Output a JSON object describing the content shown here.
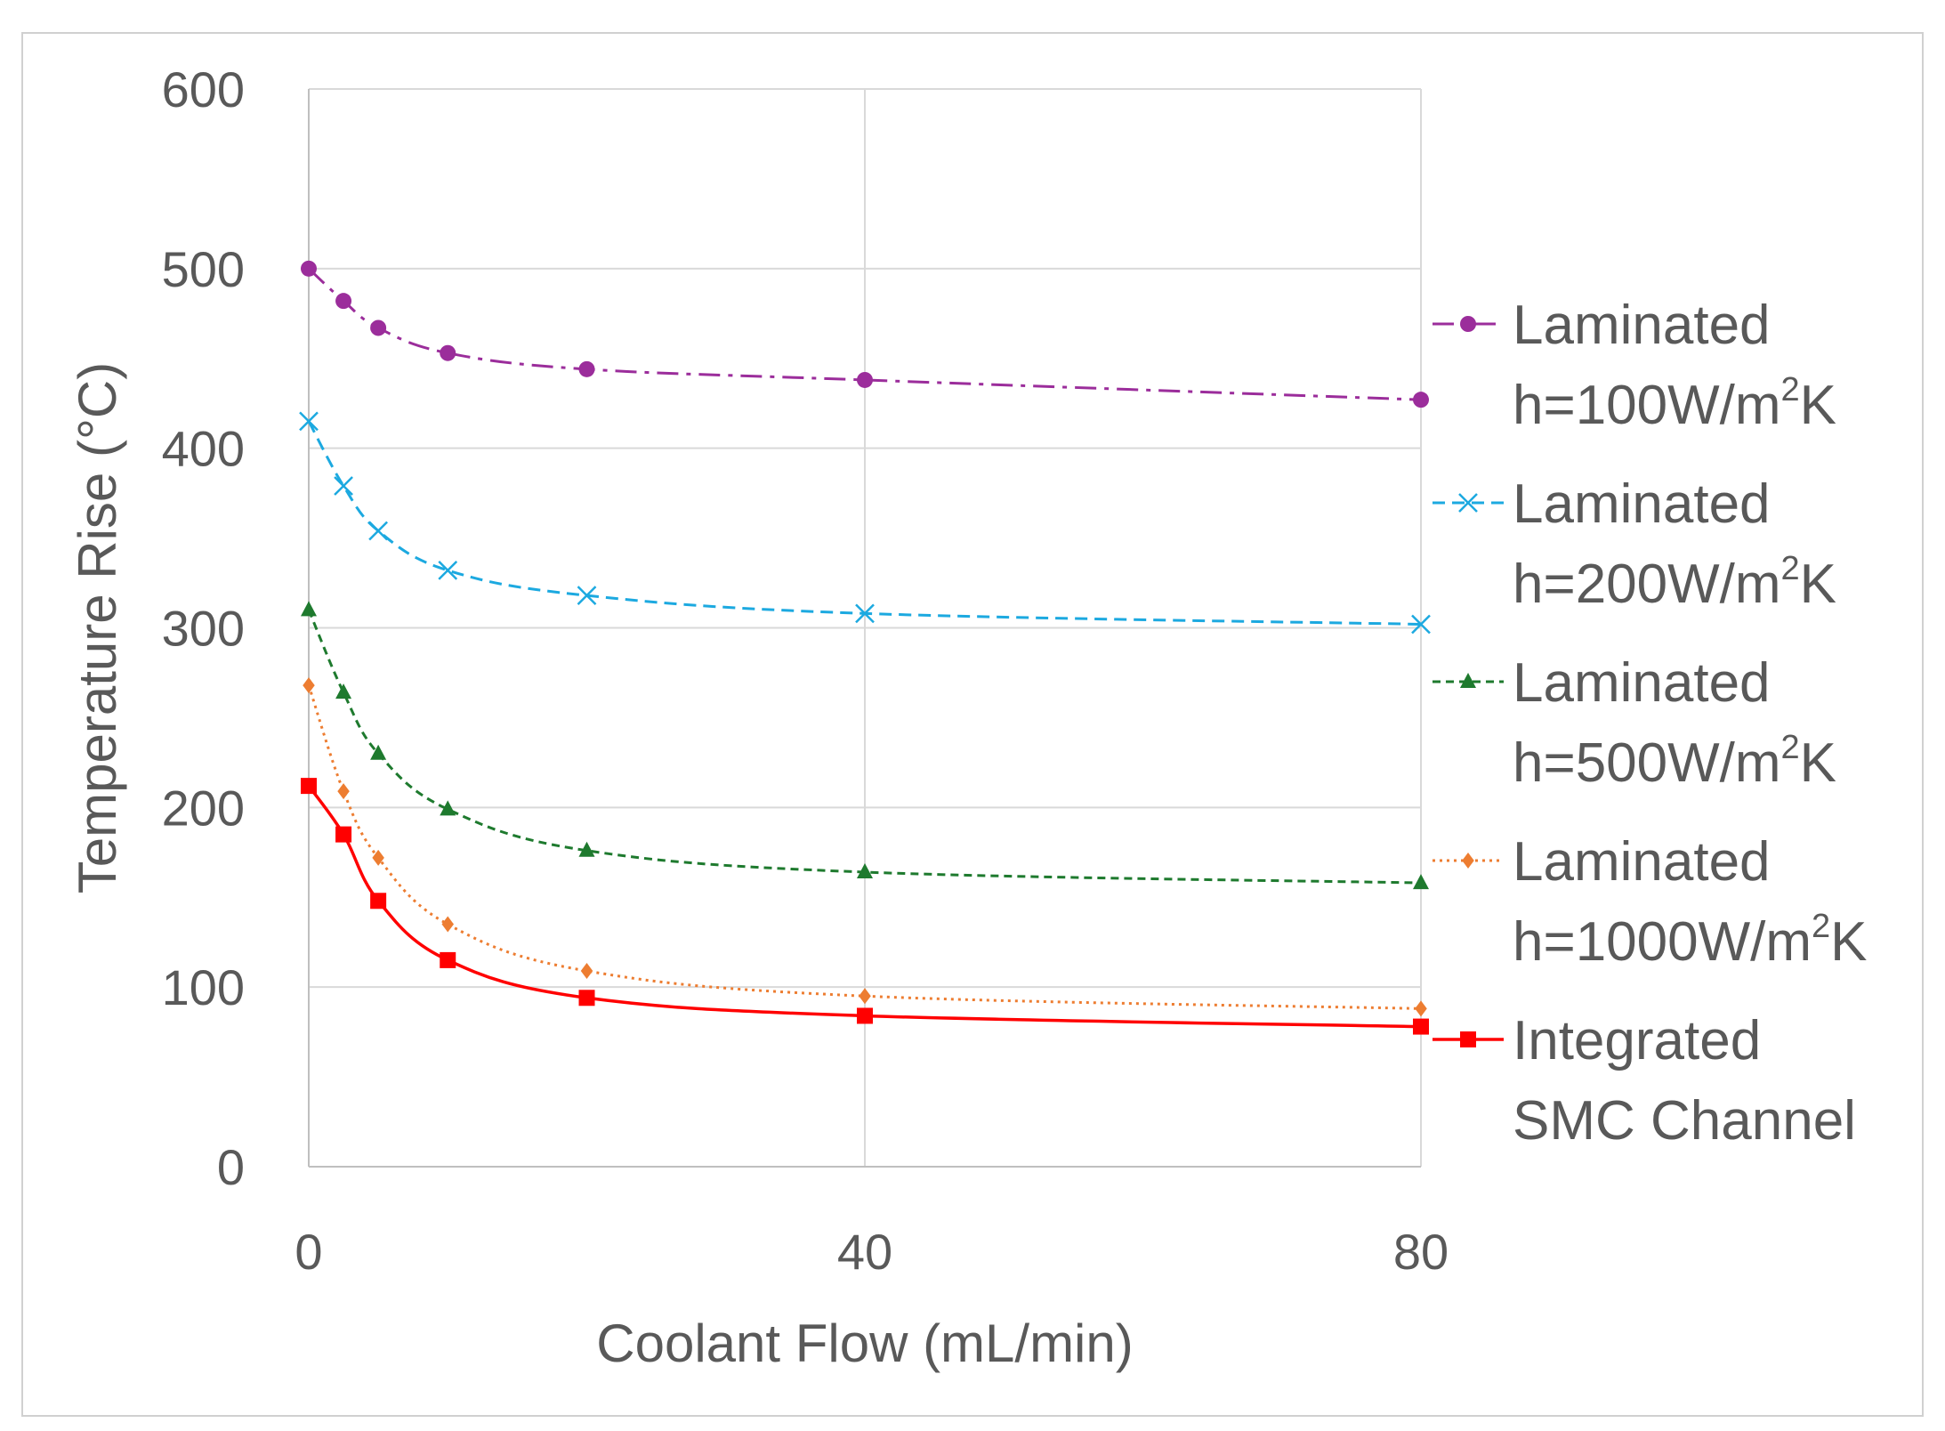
{
  "chart_data": {
    "type": "line",
    "title": "",
    "xlabel": "Coolant Flow (mL/min)",
    "ylabel": "Temperature Rise (°C)",
    "xlim": [
      0,
      80
    ],
    "ylim": [
      0,
      600
    ],
    "xticks": [
      "0",
      "40",
      "80"
    ],
    "yticks": [
      "0",
      "100",
      "200",
      "300",
      "400",
      "500",
      "600"
    ],
    "grid": true,
    "legend_position": "right",
    "x": [
      0,
      2.5,
      5,
      10,
      20,
      40,
      80
    ],
    "series": [
      {
        "name_line1": "Laminated",
        "name_line2": "h=100W/m",
        "name_sup": "2",
        "name_suffix": "K",
        "color": "#9b2d9b",
        "dash": "dashdot",
        "marker": "circle",
        "values": [
          500,
          482,
          467,
          453,
          444,
          438,
          427
        ]
      },
      {
        "name_line1": "Laminated",
        "name_line2": "h=200W/m",
        "name_sup": "2",
        "name_suffix": "K",
        "color": "#1ca9e0",
        "dash": "dash",
        "marker": "x",
        "values": [
          415,
          379,
          354,
          332,
          318,
          308,
          302
        ]
      },
      {
        "name_line1": "Laminated",
        "name_line2": "h=500W/m",
        "name_sup": "2",
        "name_suffix": "K",
        "color": "#1e7a2e",
        "dash": "shortdash",
        "marker": "triangle",
        "values": [
          310,
          264,
          230,
          199,
          176,
          164,
          158
        ]
      },
      {
        "name_line1": "Laminated",
        "name_line2": "h=1000W/m",
        "name_sup": "2",
        "name_suffix": "K",
        "color": "#ed7d31",
        "dash": "dot",
        "marker": "diamond",
        "values": [
          268,
          209,
          172,
          135,
          109,
          95,
          88
        ]
      },
      {
        "name_line1": "Integrated",
        "name_line2": "SMC Channel",
        "name_sup": "",
        "name_suffix": "",
        "color": "#ff0000",
        "dash": "solid",
        "marker": "square",
        "values": [
          212,
          185,
          148,
          115,
          94,
          84,
          78
        ]
      }
    ]
  }
}
